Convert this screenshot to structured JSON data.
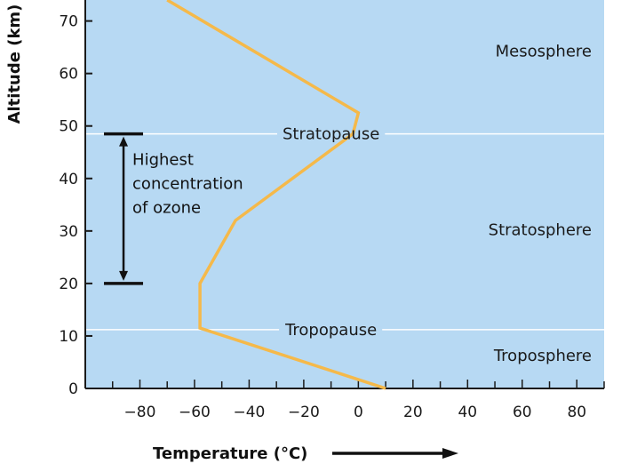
{
  "chart_data": {
    "type": "line",
    "title": "",
    "xlabel": "Temperature (°C)",
    "ylabel": "Altitude (km)",
    "xlim": [
      -100,
      90
    ],
    "ylim": [
      0,
      74
    ],
    "x_ticks": [
      -80,
      -60,
      -40,
      -20,
      0,
      20,
      40,
      60,
      80
    ],
    "y_ticks": [
      0,
      10,
      20,
      30,
      40,
      50,
      60,
      70
    ],
    "x_tick_labels": [
      "−80",
      "−60",
      "−40",
      "−20",
      "0",
      "20",
      "40",
      "60",
      "80"
    ],
    "series": [
      {
        "color": "#f5b94a",
        "points": [
          {
            "x": 10,
            "y": 0
          },
          {
            "x": -58,
            "y": 11.5
          },
          {
            "x": -58,
            "y": 20
          },
          {
            "x": -45,
            "y": 32
          },
          {
            "x": -2,
            "y": 48.5
          },
          {
            "x": 0,
            "y": 52.5
          },
          {
            "x": -70,
            "y": 74
          }
        ]
      }
    ],
    "boundaries": [
      {
        "label": "Tropopause",
        "y": 11.2
      },
      {
        "label": "Stratopause",
        "y": 48.5
      }
    ],
    "layers": [
      {
        "label": "Troposphere",
        "y": 6.3
      },
      {
        "label": "Stratosphere",
        "y": 30.2
      },
      {
        "label": "Mesosphere",
        "y": 64.3
      }
    ],
    "ozone_band": {
      "y_from": 20,
      "y_to": 48.5,
      "x": -86,
      "label_lines": [
        "Highest",
        "concentration",
        "of ozone"
      ]
    },
    "colors": {
      "background": "#b7d9f3",
      "profile": "#f5b94a",
      "gridline": "#ffffff",
      "axis": "#1a1a1a"
    }
  }
}
